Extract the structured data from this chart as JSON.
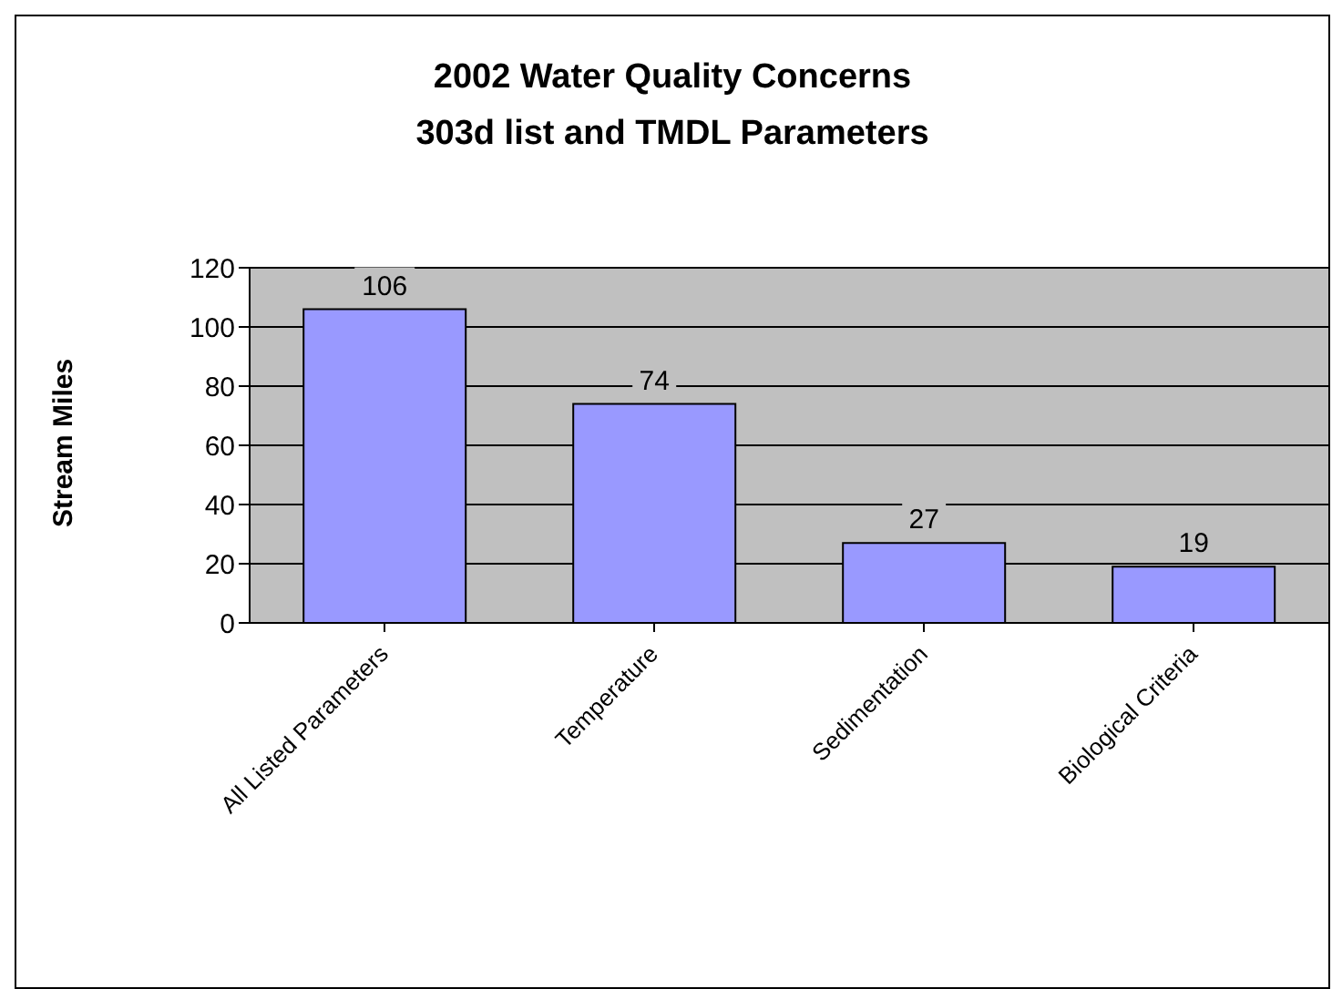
{
  "chart_data": {
    "type": "bar",
    "title": "2002 Water Quality Concerns",
    "subtitle": "303d list and TMDL Parameters",
    "ylabel": "Stream Miles",
    "categories": [
      "All Listed Parameters",
      "Temperature",
      "Sedimentation",
      "Biological Criteria"
    ],
    "values": [
      106,
      74,
      27,
      19
    ],
    "color": "#9999ff",
    "ylim": [
      0,
      120
    ],
    "yticks": [
      0,
      20,
      40,
      60,
      80,
      100,
      120
    ],
    "grid": "y",
    "data_labels": true
  }
}
